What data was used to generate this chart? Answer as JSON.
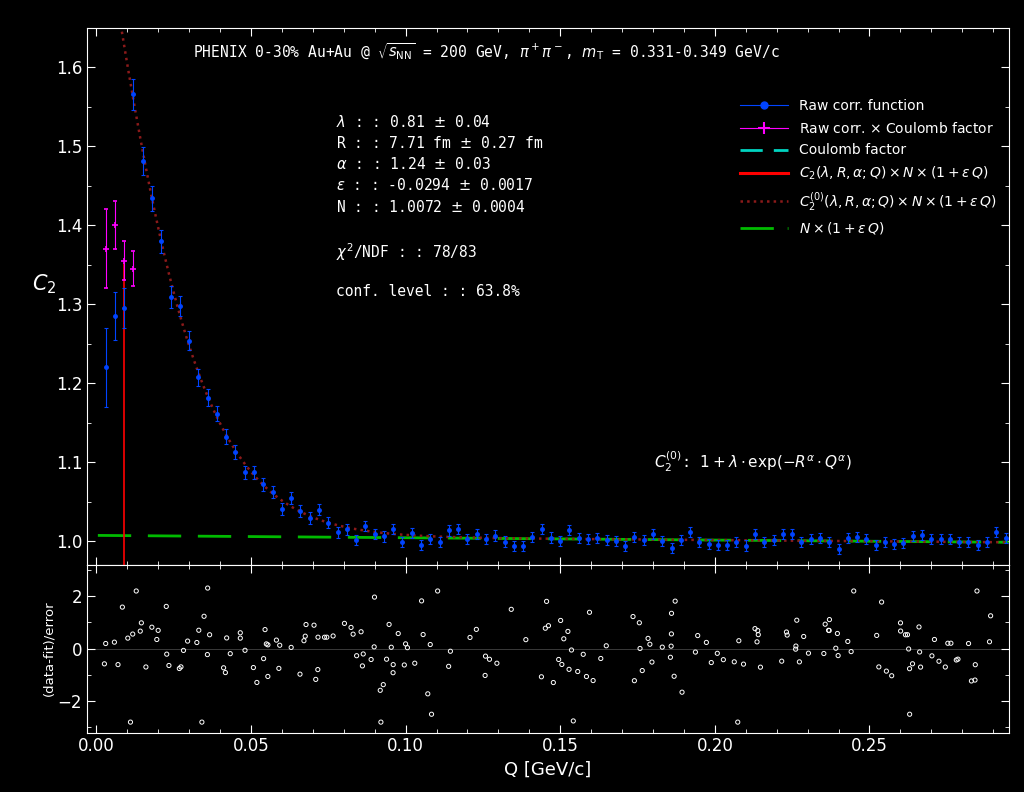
{
  "fit_params": {
    "lambda": 0.81,
    "R_fm": 7.71,
    "alpha": 1.24,
    "epsilon": -0.0294,
    "N": 1.0072
  },
  "xlim": [
    -0.003,
    0.295
  ],
  "ylim_main": [
    0.97,
    1.65
  ],
  "ylim_res": [
    -3.2,
    3.2
  ],
  "yticks_main": [
    1.0,
    1.1,
    1.2,
    1.3,
    1.4,
    1.5,
    1.6
  ],
  "yticks_res": [
    -2,
    0,
    2
  ],
  "xticks": [
    0.0,
    0.05,
    0.1,
    0.15,
    0.2,
    0.25
  ],
  "bg_color": "#000000",
  "text_color": "#ffffff",
  "coulomb_color": "#00D4C0",
  "red_color": "#FF0000",
  "dotted_color": "#8B1A1A",
  "green_color": "#00BB00",
  "blue_color": "#0044FF",
  "magenta_color": "#FF00FF"
}
